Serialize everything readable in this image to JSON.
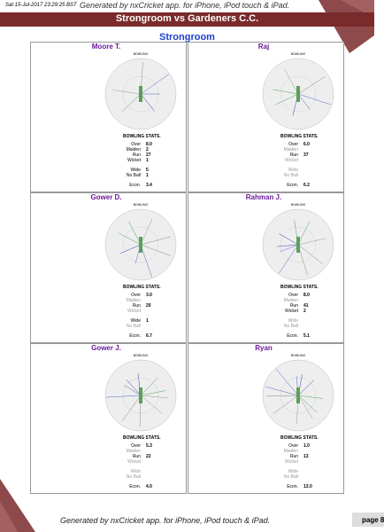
{
  "header": {
    "timestamp": "Sat 15-Jul-2017 23:29:25 BST",
    "generated": "Generated by nxCricket app. for iPhone, iPod touch & iPad.",
    "match": "Strongroom vs Gardeners C.C."
  },
  "section": "Strongroom",
  "wheel_label": "BOWLING",
  "stats_heading": "BOWLING STATS.",
  "bowlers": [
    {
      "name": "Moore T.",
      "stats": [
        {
          "label": "Over",
          "value": "8.0"
        },
        {
          "label": "Maiden",
          "value": "2"
        },
        {
          "label": "Run",
          "value": "27"
        },
        {
          "label": "Wicket",
          "value": "1"
        },
        {
          "label": "Wide",
          "value": "5"
        },
        {
          "label": "No Ball",
          "value": "1"
        },
        {
          "label": "Econ.",
          "value": "3.4"
        }
      ]
    },
    {
      "name": "Raj",
      "stats": [
        {
          "label": "Over",
          "value": "6.0"
        },
        {
          "label": "Maiden"
        },
        {
          "label": "Run",
          "value": "37"
        },
        {
          "label": "Wicket"
        },
        {
          "label": "Wide"
        },
        {
          "label": "No Ball"
        },
        {
          "label": "Econ.",
          "value": "6.2"
        }
      ]
    },
    {
      "name": "Gower D.",
      "stats": [
        {
          "label": "Over",
          "value": "3.0"
        },
        {
          "label": "Maiden"
        },
        {
          "label": "Run",
          "value": "20"
        },
        {
          "label": "Wicket"
        },
        {
          "label": "Wide",
          "value": "1"
        },
        {
          "label": "No Ball"
        },
        {
          "label": "Econ.",
          "value": "6.7"
        }
      ]
    },
    {
      "name": "Rahman J.",
      "stats": [
        {
          "label": "Over",
          "value": "8.0"
        },
        {
          "label": "Maiden"
        },
        {
          "label": "Run",
          "value": "41"
        },
        {
          "label": "Wicket",
          "value": "2"
        },
        {
          "label": "Wide"
        },
        {
          "label": "No Ball"
        },
        {
          "label": "Econ.",
          "value": "5.1"
        }
      ]
    },
    {
      "name": "Gower J.",
      "stats": [
        {
          "label": "Over",
          "value": "5.3"
        },
        {
          "label": "Maiden"
        },
        {
          "label": "Run",
          "value": "22"
        },
        {
          "label": "Wicket"
        },
        {
          "label": "Wide"
        },
        {
          "label": "No Ball"
        },
        {
          "label": "Econ.",
          "value": "4.0"
        }
      ]
    },
    {
      "name": "Ryan",
      "stats": [
        {
          "label": "Over",
          "value": "1.0"
        },
        {
          "label": "Maiden"
        },
        {
          "label": "Run",
          "value": "13"
        },
        {
          "label": "Wicket"
        },
        {
          "label": "Wide"
        },
        {
          "label": "No Ball"
        },
        {
          "label": "Econ.",
          "value": "13.0"
        }
      ]
    }
  ],
  "footer": {
    "generated": "Generated by nxCricket app. for iPhone, iPod touch & iPad.",
    "page": "page 8"
  }
}
